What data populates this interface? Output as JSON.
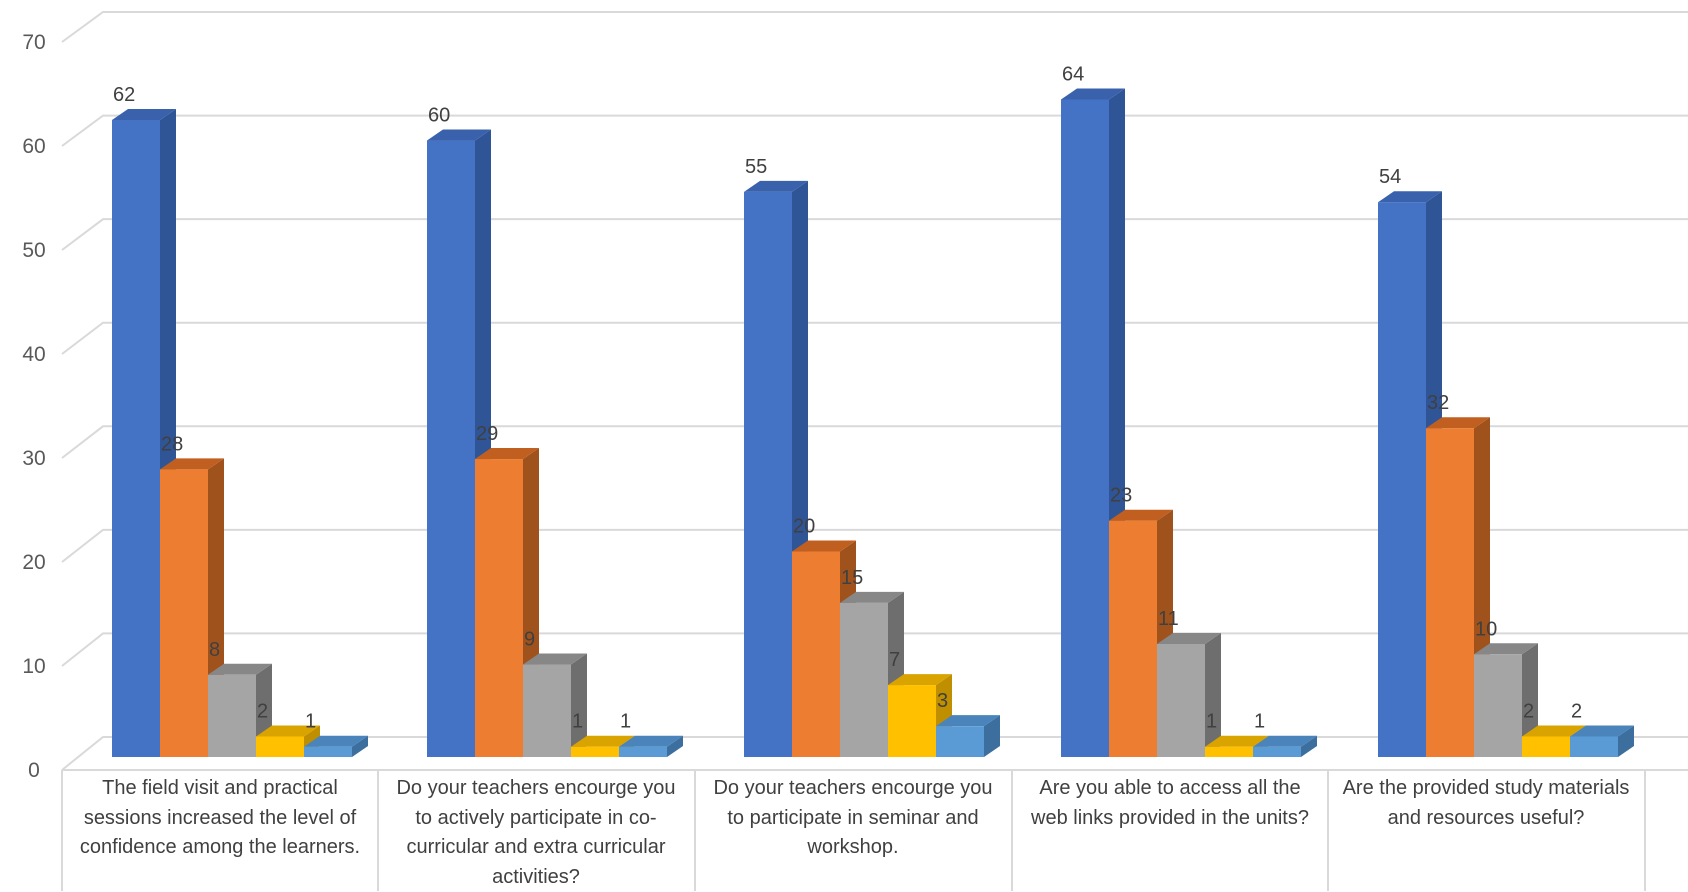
{
  "chart_data": {
    "type": "bar",
    "categories": [
      "The field visit and practical sessions increased the level of confidence among the learners.",
      "Do your teachers encourge you to actively participate in co- curricular and extra curricular activities?",
      "Do your teachers encourge you to participate in seminar and workshop.",
      "Are you able to access all the web links provided in the units?",
      "Are the provided study materials and resources useful?"
    ],
    "series": [
      {
        "values": [
          62,
          60,
          55,
          64,
          54
        ],
        "color": "#4472C4",
        "side": "#2F5597",
        "top": "#3A62AC"
      },
      {
        "values": [
          28,
          29,
          20,
          23,
          32
        ],
        "color": "#ED7D31",
        "side": "#A0521D",
        "top": "#C05F20"
      },
      {
        "values": [
          8,
          9,
          15,
          11,
          10
        ],
        "color": "#A5A5A5",
        "side": "#6E6E6E",
        "top": "#878787"
      },
      {
        "values": [
          2,
          1,
          7,
          1,
          2
        ],
        "color": "#FFC000",
        "side": "#BF8F00",
        "top": "#D9A300"
      },
      {
        "values": [
          1,
          1,
          3,
          1,
          2
        ],
        "color": "#5B9BD5",
        "side": "#3C6E9E",
        "top": "#4A84BA"
      }
    ],
    "ylim": [
      0,
      70
    ],
    "yticks": [
      0,
      10,
      20,
      30,
      40,
      50,
      60,
      70
    ],
    "grid": true,
    "style": "3d-clustered-column"
  }
}
